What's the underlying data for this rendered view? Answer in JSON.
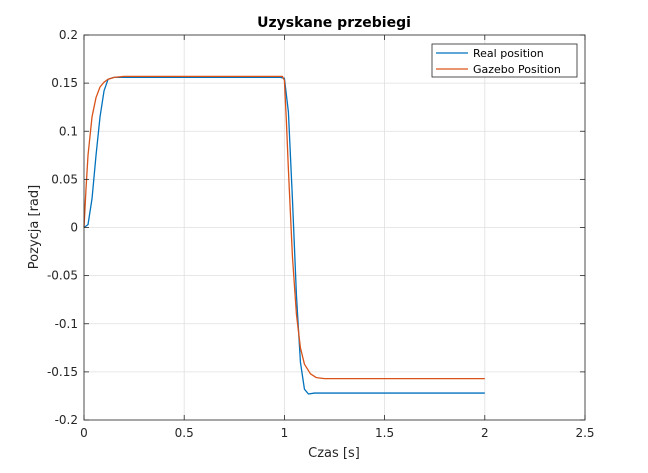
{
  "chart_data": {
    "type": "line",
    "title": "Uzyskane przebiegi",
    "xlabel": "Czas [s]",
    "ylabel": "Pozycja [rad]",
    "xlim": [
      0,
      2.5
    ],
    "ylim": [
      -0.2,
      0.2
    ],
    "xticks": [
      0,
      0.5,
      1,
      1.5,
      2,
      2.5
    ],
    "xtick_labels": [
      "0",
      "0.5",
      "1",
      "1.5",
      "2",
      "2.5"
    ],
    "yticks": [
      -0.2,
      -0.15,
      -0.1,
      -0.05,
      0,
      0.05,
      0.1,
      0.15,
      0.2
    ],
    "ytick_labels": [
      "-0.2",
      "-0.15",
      "-0.1",
      "-0.05",
      "0",
      "0.05",
      "0.1",
      "0.15",
      "0.2"
    ],
    "grid": true,
    "legend_position": "top-right",
    "series": [
      {
        "name": "Real position",
        "color": "#0072BD",
        "x": [
          0,
          0.02,
          0.04,
          0.06,
          0.08,
          0.1,
          0.12,
          0.15,
          0.2,
          0.4,
          0.6,
          0.8,
          0.98,
          1.0,
          1.02,
          1.04,
          1.06,
          1.08,
          1.1,
          1.12,
          1.15,
          1.2,
          1.5,
          1.8,
          2.0
        ],
        "y": [
          0,
          0.003,
          0.03,
          0.075,
          0.115,
          0.142,
          0.154,
          0.156,
          0.156,
          0.156,
          0.156,
          0.156,
          0.156,
          0.155,
          0.12,
          0.03,
          -0.07,
          -0.14,
          -0.168,
          -0.173,
          -0.172,
          -0.172,
          -0.172,
          -0.172,
          -0.172
        ]
      },
      {
        "name": "Gazebo Position",
        "color": "#D95319",
        "x": [
          0,
          0.01,
          0.02,
          0.04,
          0.06,
          0.08,
          0.1,
          0.12,
          0.15,
          0.2,
          0.4,
          0.6,
          0.8,
          0.99,
          1.0,
          1.01,
          1.02,
          1.03,
          1.04,
          1.06,
          1.08,
          1.1,
          1.13,
          1.16,
          1.2,
          1.3,
          1.5,
          1.8,
          2.0
        ],
        "y": [
          0,
          0.04,
          0.075,
          0.115,
          0.135,
          0.146,
          0.151,
          0.154,
          0.156,
          0.157,
          0.157,
          0.157,
          0.157,
          0.157,
          0.153,
          0.11,
          0.06,
          0.015,
          -0.03,
          -0.09,
          -0.125,
          -0.142,
          -0.152,
          -0.156,
          -0.157,
          -0.157,
          -0.157,
          -0.157,
          -0.157
        ]
      }
    ]
  }
}
